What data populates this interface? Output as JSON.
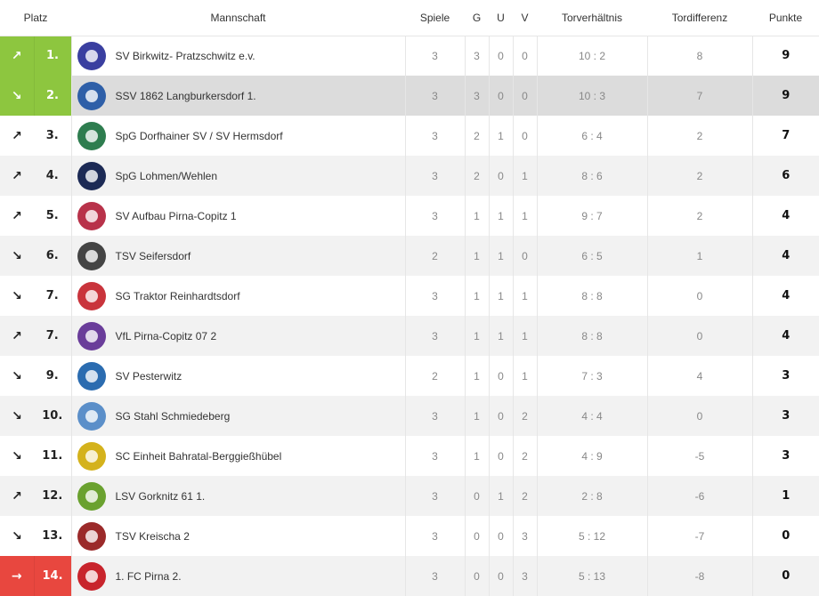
{
  "headers": {
    "platz": "Platz",
    "mannschaft": "Mannschaft",
    "spiele": "Spiele",
    "g": "G",
    "u": "U",
    "v": "V",
    "tore": "Torverhältnis",
    "diff": "Tordifferenz",
    "punkte": "Punkte"
  },
  "colors": {
    "promotion": "#8dc63f",
    "relegation": "#e8473f"
  },
  "icons": {
    "up": "↗",
    "down": "↘",
    "right": "→"
  },
  "rows": [
    {
      "trend": "up",
      "arrow": "↗",
      "rank": "1.",
      "team": "SV Birkwitz- Pratzschwitz e.v.",
      "logo_color": "#3a3fa0",
      "spiele": "3",
      "g": "3",
      "u": "0",
      "v": "0",
      "tore": "10 : 2",
      "diff": "8",
      "punkte": "9",
      "zone": "promo"
    },
    {
      "trend": "down",
      "arrow": "↘",
      "rank": "2.",
      "team": "SSV 1862 Langburkersdorf 1.",
      "logo_color": "#2e5fa8",
      "spiele": "3",
      "g": "3",
      "u": "0",
      "v": "0",
      "tore": "10 : 3",
      "diff": "7",
      "punkte": "9",
      "zone": "promo",
      "highlight": true
    },
    {
      "trend": "up",
      "arrow": "↗",
      "rank": "3.",
      "team": "SpG Dorfhainer SV / SV Hermsdorf",
      "logo_color": "#2e7d4f",
      "spiele": "3",
      "g": "2",
      "u": "1",
      "v": "0",
      "tore": "6 : 4",
      "diff": "2",
      "punkte": "7"
    },
    {
      "trend": "up",
      "arrow": "↗",
      "rank": "4.",
      "team": "SpG Lohmen/Wehlen",
      "logo_color": "#1c2a55",
      "spiele": "3",
      "g": "2",
      "u": "0",
      "v": "1",
      "tore": "8 : 6",
      "diff": "2",
      "punkte": "6"
    },
    {
      "trend": "up",
      "arrow": "↗",
      "rank": "5.",
      "team": "SV Aufbau Pirna-Copitz 1",
      "logo_color": "#b8324a",
      "spiele": "3",
      "g": "1",
      "u": "1",
      "v": "1",
      "tore": "9 : 7",
      "diff": "2",
      "punkte": "4"
    },
    {
      "trend": "down",
      "arrow": "↘",
      "rank": "6.",
      "team": "TSV Seifersdorf",
      "logo_color": "#444444",
      "spiele": "2",
      "g": "1",
      "u": "1",
      "v": "0",
      "tore": "6 : 5",
      "diff": "1",
      "punkte": "4"
    },
    {
      "trend": "down",
      "arrow": "↘",
      "rank": "7.",
      "team": "SG Traktor Reinhardtsdorf",
      "logo_color": "#c9343c",
      "spiele": "3",
      "g": "1",
      "u": "1",
      "v": "1",
      "tore": "8 : 8",
      "diff": "0",
      "punkte": "4"
    },
    {
      "trend": "up",
      "arrow": "↗",
      "rank": "7.",
      "team": "VfL Pirna-Copitz 07 2",
      "logo_color": "#6a3d9a",
      "spiele": "3",
      "g": "1",
      "u": "1",
      "v": "1",
      "tore": "8 : 8",
      "diff": "0",
      "punkte": "4"
    },
    {
      "trend": "down",
      "arrow": "↘",
      "rank": "9.",
      "team": "SV Pesterwitz",
      "logo_color": "#2b6cb0",
      "spiele": "2",
      "g": "1",
      "u": "0",
      "v": "1",
      "tore": "7 : 3",
      "diff": "4",
      "punkte": "3"
    },
    {
      "trend": "down",
      "arrow": "↘",
      "rank": "10.",
      "team": "SG Stahl Schmiedeberg",
      "logo_color": "#5b8fc9",
      "spiele": "3",
      "g": "1",
      "u": "0",
      "v": "2",
      "tore": "4 : 4",
      "diff": "0",
      "punkte": "3"
    },
    {
      "trend": "down",
      "arrow": "↘",
      "rank": "11.",
      "team": "SC Einheit Bahratal-Berggießhübel",
      "logo_color": "#d4b21c",
      "spiele": "3",
      "g": "1",
      "u": "0",
      "v": "2",
      "tore": "4 : 9",
      "diff": "-5",
      "punkte": "3"
    },
    {
      "trend": "up",
      "arrow": "↗",
      "rank": "12.",
      "team": "LSV Gorknitz 61 1.",
      "logo_color": "#6aa12f",
      "spiele": "3",
      "g": "0",
      "u": "1",
      "v": "2",
      "tore": "2 : 8",
      "diff": "-6",
      "punkte": "1"
    },
    {
      "trend": "down",
      "arrow": "↘",
      "rank": "13.",
      "team": "TSV Kreischa 2",
      "logo_color": "#9b2a2a",
      "spiele": "3",
      "g": "0",
      "u": "0",
      "v": "3",
      "tore": "5 : 12",
      "diff": "-7",
      "punkte": "0"
    },
    {
      "trend": "right",
      "arrow": "→",
      "rank": "14.",
      "team": "1. FC Pirna 2.",
      "logo_color": "#c8242c",
      "spiele": "3",
      "g": "0",
      "u": "0",
      "v": "3",
      "tore": "5 : 13",
      "diff": "-8",
      "punkte": "0",
      "zone": "releg"
    }
  ]
}
